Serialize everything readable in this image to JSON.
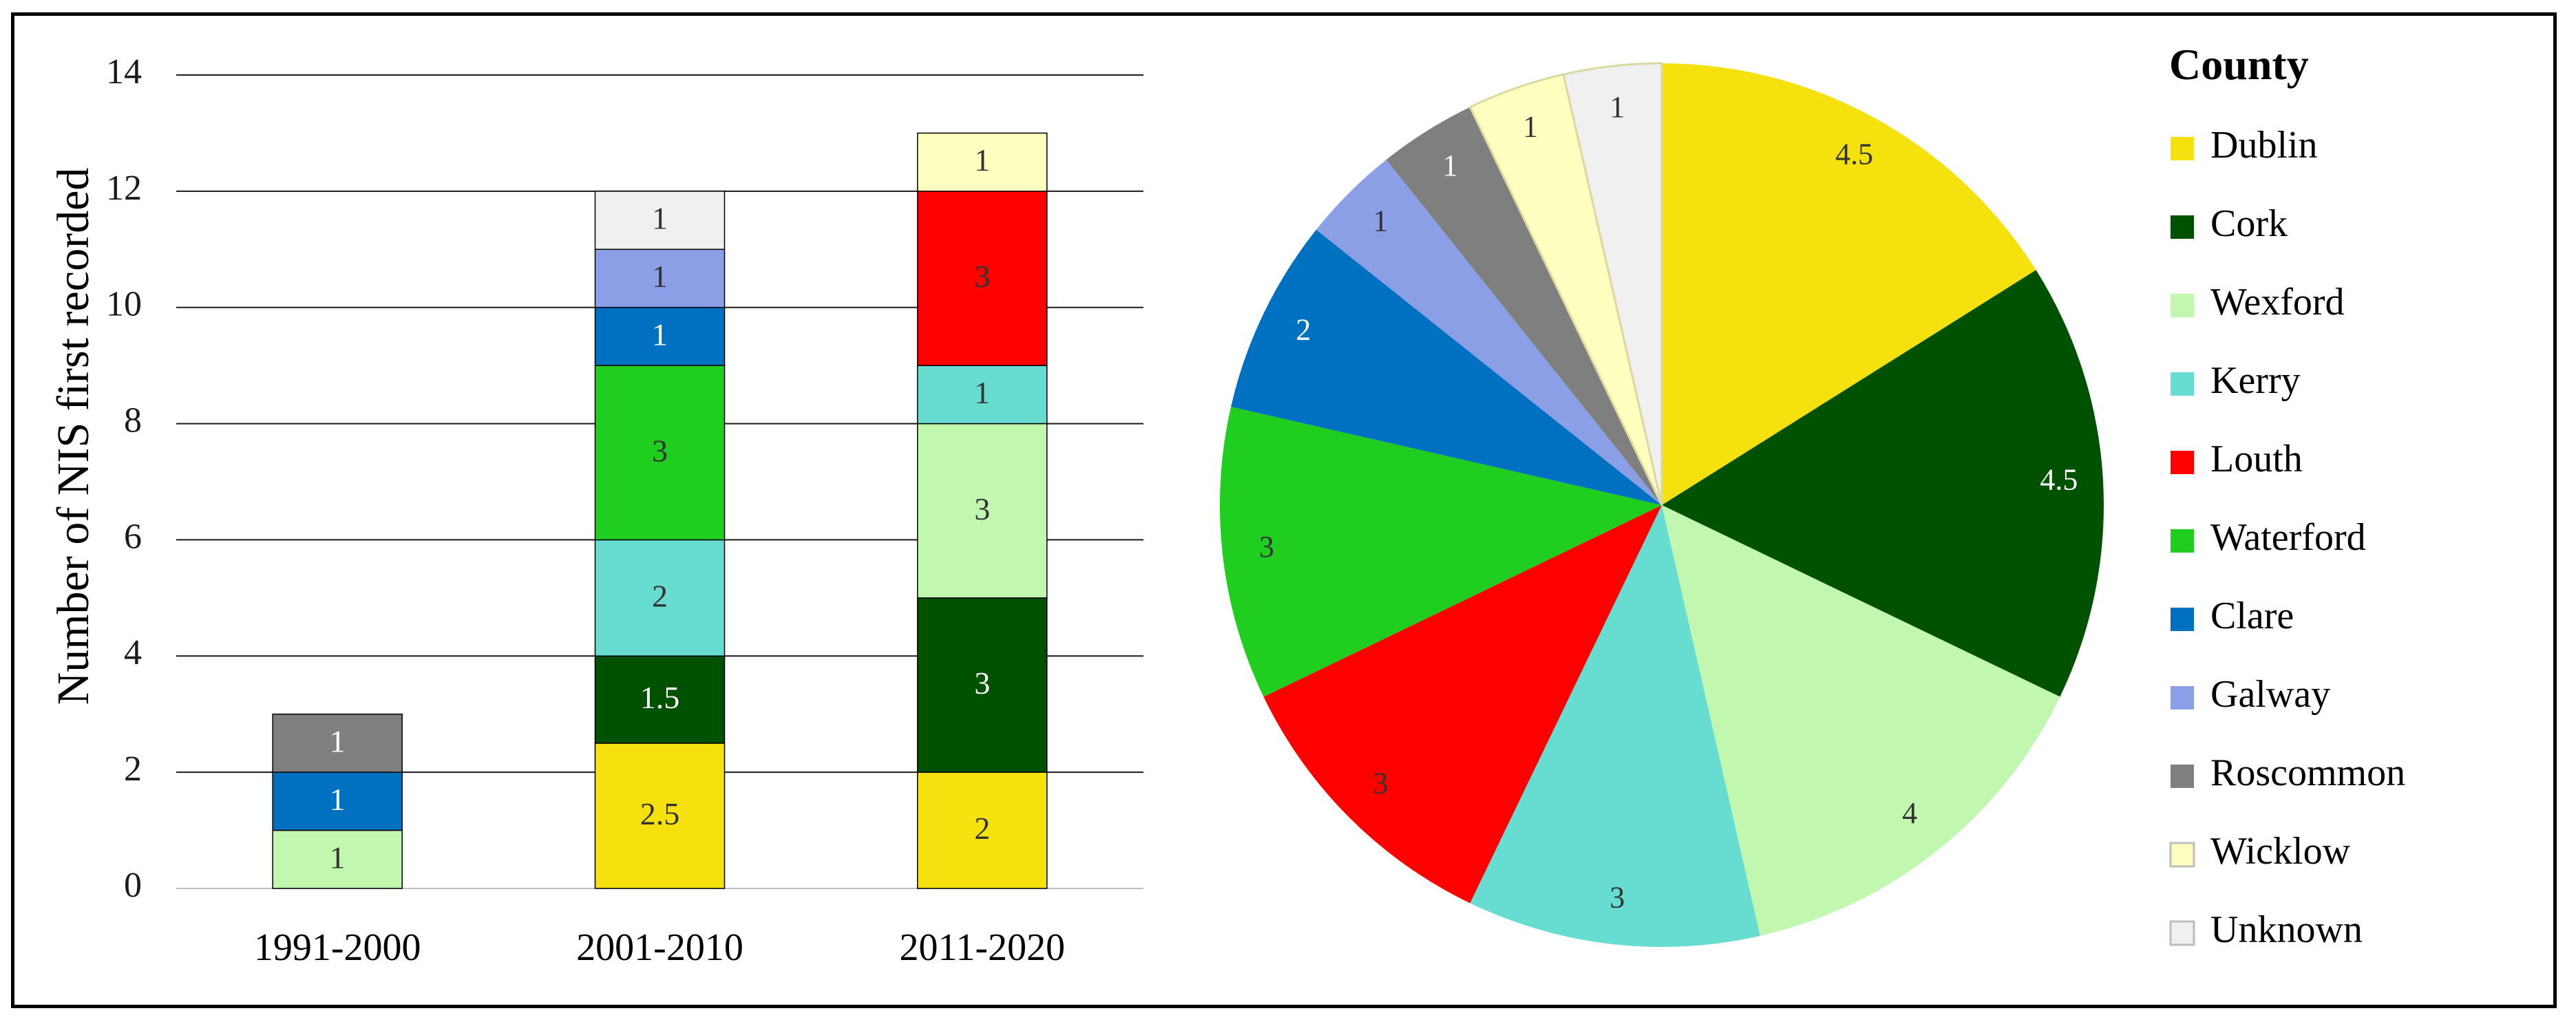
{
  "chart_data": [
    {
      "type": "bar",
      "stacked": true,
      "ylabel": "Number of NIS first recorded",
      "xlabel": "",
      "ylim": [
        0,
        14
      ],
      "yticks": [
        0,
        2,
        4,
        6,
        8,
        10,
        12,
        14
      ],
      "grid": true,
      "categories": [
        "1991-2000",
        "2001-2010",
        "2011-2020"
      ],
      "series": [
        {
          "name": "Dublin",
          "values": [
            0,
            2.5,
            2
          ]
        },
        {
          "name": "Cork",
          "values": [
            0,
            1.5,
            3
          ]
        },
        {
          "name": "Wexford",
          "values": [
            1,
            0,
            3
          ]
        },
        {
          "name": "Kerry",
          "values": [
            0,
            2,
            1
          ]
        },
        {
          "name": "Louth",
          "values": [
            0,
            0,
            3
          ]
        },
        {
          "name": "Waterford",
          "values": [
            0,
            3,
            0
          ]
        },
        {
          "name": "Clare",
          "values": [
            1,
            1,
            0
          ]
        },
        {
          "name": "Galway",
          "values": [
            0,
            1,
            0
          ]
        },
        {
          "name": "Roscommon",
          "values": [
            1,
            0,
            0
          ]
        },
        {
          "name": "Wicklow",
          "values": [
            0,
            0,
            1
          ]
        },
        {
          "name": "Unknown",
          "values": [
            0,
            1,
            0
          ]
        }
      ]
    },
    {
      "type": "pie",
      "legend_title": "County",
      "legend_position": "right",
      "labels": [
        "Dublin",
        "Cork",
        "Wexford",
        "Kerry",
        "Louth",
        "Waterford",
        "Clare",
        "Galway",
        "Roscommon",
        "Wicklow",
        "Unknown"
      ],
      "values": [
        4.5,
        4.5,
        4,
        3,
        3,
        3,
        2,
        1,
        1,
        1,
        1
      ],
      "value_labels": [
        "4.5",
        "4.5",
        "4",
        "3",
        "3",
        "3",
        "2",
        "1",
        "1",
        "1",
        "1"
      ]
    }
  ],
  "colors": {
    "Dublin": "#f5e10e",
    "Cork": "#005200",
    "Wexford": "#c2f7b0",
    "Kerry": "#66ddd0",
    "Louth": "#ff0000",
    "Waterford": "#1fce1f",
    "Clare": "#0070c0",
    "Galway": "#8b9fe6",
    "Roscommon": "#7f7f7f",
    "Wicklow": "#ffffc0",
    "Unknown": "#f0f0f0"
  },
  "label_colors": {
    "Dublin": "#333333",
    "Cork": "#ffffff",
    "Wexford": "#333333",
    "Kerry": "#333333",
    "Louth": "#333333",
    "Waterford": "#333333",
    "Clare": "#ffffff",
    "Galway": "#333333",
    "Roscommon": "#ffffff",
    "Wicklow": "#333333",
    "Unknown": "#333333"
  },
  "outlined": [
    "Wicklow",
    "Unknown"
  ]
}
